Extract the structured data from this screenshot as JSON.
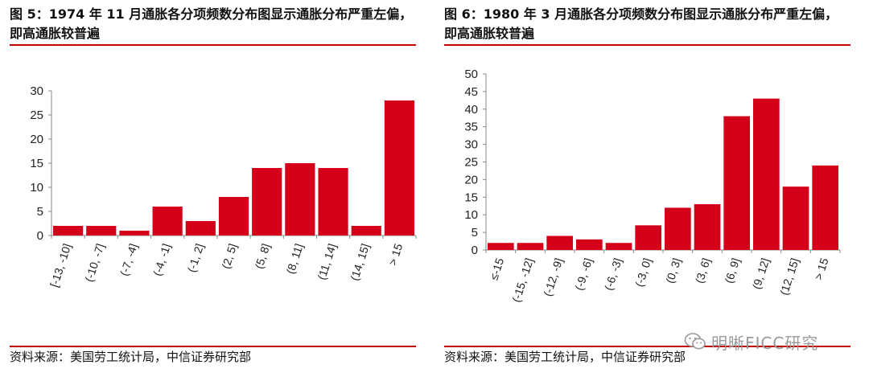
{
  "figures": [
    {
      "title": "图 5：1974 年 11 月通胀各分项频数分布图显示通胀分布严重左偏，即高通胀较普遍",
      "source": "资料来源：美国劳工统计局，中信证券研究部"
    },
    {
      "title": "图 6：1980 年 3 月通胀各分项频数分布图显示通胀分布严重左偏，即高通胀较普遍",
      "source": "资料来源：美国劳工统计局，中信证券研究部"
    }
  ],
  "chart_data": [
    {
      "type": "bar",
      "categories": [
        "[-13, -10]",
        "(-10, -7]",
        "(-7, -4]",
        "(-4, -1]",
        "(-1, 2]",
        "(2, 5]",
        "(5, 8]",
        "(8, 11]",
        "(11, 14]",
        "(14, 15]",
        "> 15"
      ],
      "values": [
        2,
        2,
        1,
        6,
        3,
        8,
        14,
        15,
        14,
        2,
        28
      ],
      "ylim": [
        0,
        30
      ],
      "yticks": [
        0,
        5,
        10,
        15,
        20,
        25,
        30
      ],
      "color": "#d4001a",
      "grid": false
    },
    {
      "type": "bar",
      "categories": [
        "≤-15",
        "(-15, -12]",
        "(-12, -9]",
        "(-9, -6]",
        "(-6, -3]",
        "(-3, 0]",
        "(0, 3]",
        "(3, 6]",
        "(6, 9]",
        "(9, 12]",
        "(12, 15]",
        "> 15"
      ],
      "values": [
        2,
        2,
        4,
        3,
        2,
        7,
        12,
        13,
        38,
        43,
        18,
        24
      ],
      "ylim": [
        0,
        50
      ],
      "yticks": [
        0,
        5,
        10,
        15,
        20,
        25,
        30,
        35,
        40,
        45,
        50
      ],
      "color": "#d4001a",
      "grid": false
    }
  ],
  "watermark": {
    "text": "明晰FICC研究",
    "icon": "wechat-icon"
  }
}
